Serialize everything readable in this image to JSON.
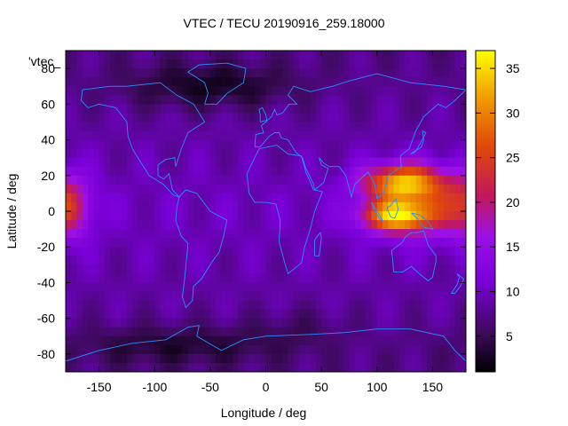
{
  "chart_data": {
    "type": "heatmap",
    "title": "VTEC / TECU 20190916_259.18000",
    "xlabel": "Longitude / deg",
    "ylabel": "Latitude / deg",
    "xlim": [
      -180,
      180
    ],
    "ylim": [
      -90,
      90
    ],
    "xticks": [
      -150,
      -100,
      -50,
      0,
      50,
      100,
      150
    ],
    "yticks": [
      -80,
      -60,
      -40,
      -20,
      0,
      20,
      40,
      60,
      80
    ],
    "colorbar": {
      "range": [
        1,
        37
      ],
      "ticks": [
        5,
        10,
        15,
        20,
        25,
        30,
        35
      ]
    },
    "legend_entry": "'vtec_",
    "overlay": "coastlines",
    "colors": {
      "coastline": "#2a8fff",
      "frame": "#000000"
    },
    "features": [
      {
        "lon": 120,
        "lat": 10,
        "peak_tecu": 32,
        "note": "high TEC over SE Asia / Pacific"
      },
      {
        "lon": -175,
        "lat": 2,
        "peak_tecu": 20,
        "note": "elevated TEC near dateline"
      }
    ]
  }
}
